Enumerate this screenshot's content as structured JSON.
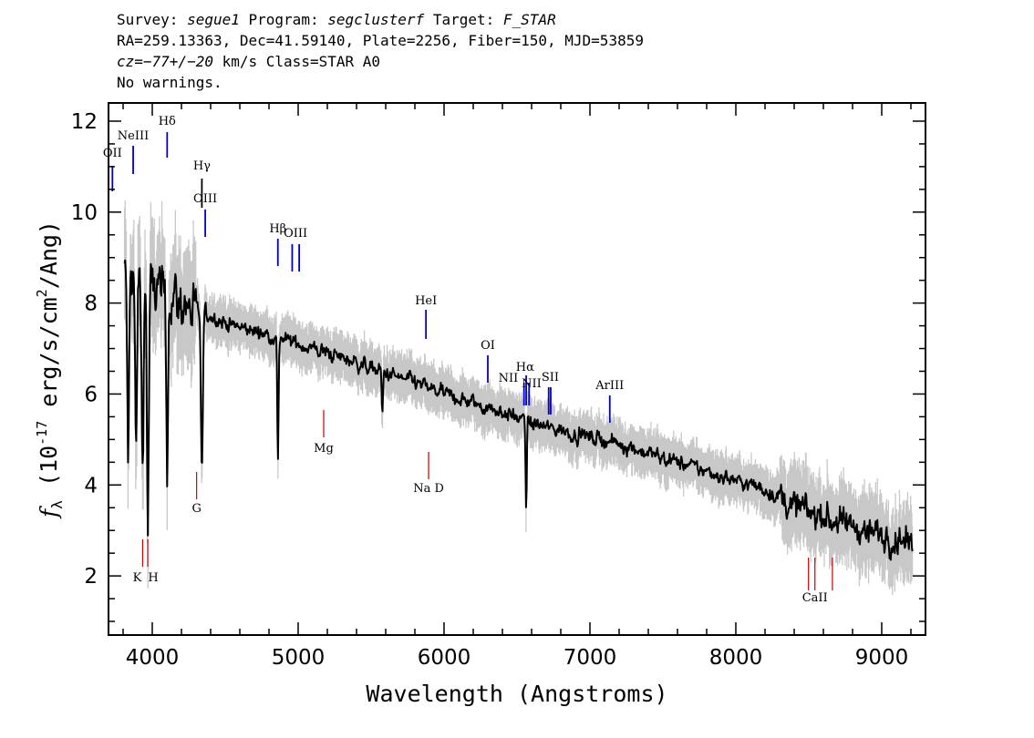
{
  "header": {
    "survey_label": "Survey:",
    "survey": "segue1",
    "program_label": "Program:",
    "program": "segclusterf",
    "target_label": "Target:",
    "target": "F_STAR",
    "line2": "RA=259.13363, Dec=41.59140, Plate=2256, Fiber=150, MJD=53859",
    "cz": "cz=−77+/−20",
    "cz_unit": "km/s",
    "class": "Class=STAR A0",
    "warnings": "No warnings."
  },
  "chart_data": {
    "type": "line",
    "xlabel": "Wavelength (Angstroms)",
    "ylabel": "f_λ (10^-17 erg/s/cm^2/Ang)",
    "xlim": [
      3700,
      9300
    ],
    "ylim": [
      0.7,
      12.4
    ],
    "xticks": [
      4000,
      5000,
      6000,
      7000,
      8000,
      9000
    ],
    "yticks": [
      2,
      4,
      6,
      8,
      10,
      12
    ],
    "colors": {
      "flux": "#000000",
      "noise_band": "#c8c8c8",
      "emission": "#0000cc",
      "absorption": "#cc0000"
    },
    "continuum": [
      [
        3800,
        8.6
      ],
      [
        3900,
        8.5
      ],
      [
        4000,
        8.3
      ],
      [
        4200,
        8.0
      ],
      [
        4400,
        7.7
      ],
      [
        4600,
        7.45
      ],
      [
        4800,
        7.3
      ],
      [
        5000,
        7.1
      ],
      [
        5200,
        6.9
      ],
      [
        5400,
        6.7
      ],
      [
        5600,
        6.45
      ],
      [
        5800,
        6.25
      ],
      [
        6000,
        6.0
      ],
      [
        6200,
        5.8
      ],
      [
        6400,
        5.6
      ],
      [
        6600,
        5.35
      ],
      [
        6800,
        5.2
      ],
      [
        7000,
        5.05
      ],
      [
        7200,
        4.9
      ],
      [
        7400,
        4.7
      ],
      [
        7600,
        4.5
      ],
      [
        7800,
        4.3
      ],
      [
        8000,
        4.1
      ],
      [
        8200,
        3.9
      ],
      [
        8400,
        3.55
      ],
      [
        8600,
        3.3
      ],
      [
        8800,
        3.1
      ],
      [
        9000,
        2.9
      ],
      [
        9200,
        2.7
      ]
    ],
    "absorption_features": [
      {
        "wavelength": 3835,
        "depth": 4.0
      },
      {
        "wavelength": 3889,
        "depth": 3.8
      },
      {
        "wavelength": 3933,
        "depth": 4.0
      },
      {
        "wavelength": 3970,
        "depth": 5.3
      },
      {
        "wavelength": 4102,
        "depth": 3.5
      },
      {
        "wavelength": 4340,
        "depth": 3.6
      },
      {
        "wavelength": 4861,
        "depth": 2.8
      },
      {
        "wavelength": 5577,
        "depth": 1.0
      },
      {
        "wavelength": 6563,
        "depth": 1.8
      }
    ],
    "emission_lines": [
      {
        "label": "OII",
        "wavelength": 3727
      },
      {
        "label": "NeIII",
        "wavelength": 3869
      },
      {
        "label": "Hδ",
        "wavelength": 4102
      },
      {
        "label": "Hγ",
        "wavelength": 4340
      },
      {
        "label": "OIII",
        "wavelength": 4363
      },
      {
        "label": "Hβ",
        "wavelength": 4861
      },
      {
        "label": "OIII",
        "wavelength": 4959
      },
      {
        "label": "OIII",
        "wavelength": 5007
      },
      {
        "label": "HeI",
        "wavelength": 5876
      },
      {
        "label": "OI",
        "wavelength": 6300
      },
      {
        "label": "NII",
        "wavelength": 6548
      },
      {
        "label": "Hα",
        "wavelength": 6563
      },
      {
        "label": "NII",
        "wavelength": 6583
      },
      {
        "label": "SII",
        "wavelength": 6717
      },
      {
        "label": "SII",
        "wavelength": 6731
      },
      {
        "label": "ArIII",
        "wavelength": 7136
      }
    ],
    "absorption_lines": [
      {
        "label": "K",
        "wavelength": 3934
      },
      {
        "label": "H",
        "wavelength": 3969
      },
      {
        "label": "G",
        "wavelength": 4304
      },
      {
        "label": "Mg",
        "wavelength": 5175
      },
      {
        "label": "Na D",
        "wavelength": 5894
      },
      {
        "label": "CaII",
        "wavelength": 8498
      },
      {
        "label": "CaII",
        "wavelength": 8542
      },
      {
        "label": "CaII",
        "wavelength": 8662
      }
    ]
  }
}
